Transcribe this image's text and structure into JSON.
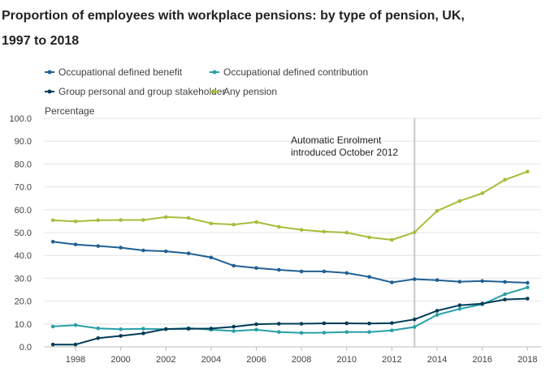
{
  "chart_data": {
    "type": "line",
    "title_line1": "Proportion of employees with workplace pensions: by type of pension, UK,",
    "title_line2": "1997 to 2018",
    "ylabel": "Percentage",
    "xlabel": "",
    "ylim": [
      0,
      100
    ],
    "y_ticks": [
      "0.0",
      "10.0",
      "20.0",
      "30.0",
      "40.0",
      "50.0",
      "60.0",
      "70.0",
      "80.0",
      "90.0",
      "100.0"
    ],
    "x_ticks": [
      "1998",
      "2000",
      "2002",
      "2004",
      "2006",
      "2008",
      "2010",
      "2012",
      "2014",
      "2016",
      "2018"
    ],
    "x": [
      1997,
      1998,
      1999,
      2000,
      2001,
      2002,
      2003,
      2004,
      2005,
      2006,
      2007,
      2008,
      2009,
      2010,
      2011,
      2012,
      2013,
      2014,
      2015,
      2016,
      2017,
      2018
    ],
    "grid": true,
    "legend_position": "top",
    "series": [
      {
        "name": "Occupational defined benefit",
        "color": "#206095",
        "values": [
          46.0,
          44.8,
          44.1,
          43.4,
          42.2,
          41.8,
          40.9,
          39.1,
          35.5,
          34.5,
          33.7,
          33.0,
          33.0,
          32.3,
          30.6,
          28.2,
          29.6,
          29.2,
          28.5,
          28.8,
          28.4,
          28.0
        ]
      },
      {
        "name": "Occupational defined contribution",
        "color": "#27A0A8",
        "values": [
          8.9,
          9.5,
          8.1,
          7.7,
          7.9,
          7.7,
          8.2,
          7.5,
          6.9,
          7.5,
          6.5,
          6.1,
          6.2,
          6.5,
          6.5,
          7.2,
          8.7,
          14.0,
          16.6,
          18.6,
          23.0,
          26.0
        ]
      },
      {
        "name": "Group personal and group stakeholder",
        "color": "#003C57",
        "values": [
          1.0,
          1.0,
          3.8,
          4.8,
          5.9,
          7.8,
          7.9,
          8.0,
          8.8,
          9.9,
          10.1,
          10.1,
          10.3,
          10.3,
          10.2,
          10.4,
          12.0,
          15.8,
          18.2,
          18.9,
          20.7,
          21.1
        ]
      },
      {
        "name": "Any pension",
        "color": "#A8BD3A",
        "values": [
          55.4,
          54.9,
          55.4,
          55.5,
          55.5,
          56.8,
          56.4,
          54.0,
          53.5,
          54.6,
          52.5,
          51.2,
          50.4,
          50.0,
          47.9,
          46.8,
          50.1,
          59.5,
          63.8,
          67.2,
          73.1,
          76.7
        ]
      }
    ],
    "annotation": {
      "line1": "Automatic Enrolment",
      "line2": "introduced October 2012",
      "x": 2013
    }
  }
}
